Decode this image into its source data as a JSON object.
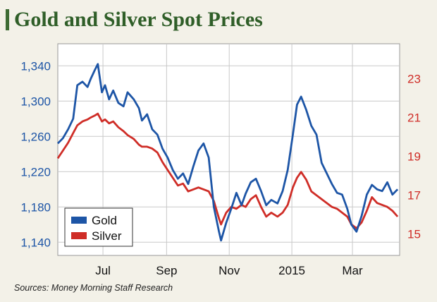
{
  "title": "Gold and Silver Spot Prices",
  "source": "Sources: Money Morning Staff Research",
  "colors": {
    "background": "#f3f1e8",
    "accent_bar": "#3d6b33",
    "title": "#2f5e28",
    "gold": "#1d55a6",
    "silver": "#cf2d27",
    "gold_axis": "#1d55a6",
    "silver_axis": "#cf2d27",
    "plot_bg": "#ffffff",
    "grid": "#c9c9c9"
  },
  "chart_data": {
    "type": "line",
    "title": "Gold and Silver Spot Prices",
    "x_ticks": [
      "Jul",
      "Sep",
      "Nov",
      "2015",
      "Mar"
    ],
    "x_range": [
      "2014-06-01",
      "2015-04-30"
    ],
    "y_left": {
      "ticks": [
        "1,140",
        "1,180",
        "1,220",
        "1,260",
        "1,300",
        "1,340"
      ],
      "ylim": [
        1125,
        1365
      ]
    },
    "y_right": {
      "ticks": [
        "15",
        "17",
        "19",
        "21",
        "23"
      ],
      "ylim": [
        13.9,
        24.8
      ]
    },
    "grid": true,
    "legend": {
      "position": "bottom-left",
      "entries": [
        "Gold",
        "Silver"
      ]
    },
    "series": [
      {
        "name": "Gold",
        "axis": "left",
        "x": [
          "2014-06-01",
          "2014-06-06",
          "2014-06-11",
          "2014-06-16",
          "2014-06-20",
          "2014-06-25",
          "2014-06-30",
          "2014-07-03",
          "2014-07-07",
          "2014-07-10",
          "2014-07-14",
          "2014-07-17",
          "2014-07-21",
          "2014-07-25",
          "2014-07-30",
          "2014-08-04",
          "2014-08-08",
          "2014-08-14",
          "2014-08-19",
          "2014-08-22",
          "2014-08-27",
          "2014-09-01",
          "2014-09-06",
          "2014-09-11",
          "2014-09-16",
          "2014-09-21",
          "2014-09-26",
          "2014-10-01",
          "2014-10-06",
          "2014-10-11",
          "2014-10-16",
          "2014-10-21",
          "2014-10-26",
          "2014-10-31",
          "2014-11-05",
          "2014-11-07",
          "2014-11-12",
          "2014-11-17",
          "2014-11-22",
          "2014-11-27",
          "2014-12-01",
          "2014-12-06",
          "2014-12-11",
          "2014-12-16",
          "2014-12-21",
          "2014-12-26",
          "2015-01-01",
          "2015-01-06",
          "2015-01-11",
          "2015-01-16",
          "2015-01-20",
          "2015-01-24",
          "2015-01-29",
          "2015-02-03",
          "2015-02-08",
          "2015-02-13",
          "2015-02-18",
          "2015-02-23",
          "2015-02-28",
          "2015-03-05",
          "2015-03-10",
          "2015-03-14",
          "2015-03-19",
          "2015-03-24",
          "2015-03-29",
          "2015-04-03",
          "2015-04-08",
          "2015-04-13",
          "2015-04-18",
          "2015-04-23",
          "2015-04-28"
        ],
        "values": [
          1252,
          1258,
          1268,
          1280,
          1318,
          1322,
          1316,
          1325,
          1335,
          1342,
          1310,
          1318,
          1302,
          1312,
          1298,
          1294,
          1310,
          1302,
          1292,
          1278,
          1285,
          1268,
          1262,
          1246,
          1236,
          1222,
          1212,
          1218,
          1206,
          1226,
          1244,
          1252,
          1236,
          1180,
          1152,
          1142,
          1162,
          1178,
          1196,
          1182,
          1195,
          1208,
          1212,
          1198,
          1182,
          1188,
          1184,
          1198,
          1222,
          1262,
          1296,
          1305,
          1290,
          1272,
          1262,
          1230,
          1218,
          1206,
          1196,
          1194,
          1178,
          1160,
          1152,
          1170,
          1194,
          1205,
          1200,
          1198,
          1208,
          1194,
          1200
        ]
      },
      {
        "name": "Silver",
        "axis": "right",
        "x": [
          "2014-06-01",
          "2014-06-06",
          "2014-06-11",
          "2014-06-16",
          "2014-06-20",
          "2014-06-25",
          "2014-06-30",
          "2014-07-03",
          "2014-07-07",
          "2014-07-10",
          "2014-07-14",
          "2014-07-17",
          "2014-07-21",
          "2014-07-25",
          "2014-07-30",
          "2014-08-04",
          "2014-08-08",
          "2014-08-14",
          "2014-08-19",
          "2014-08-22",
          "2014-08-27",
          "2014-09-01",
          "2014-09-06",
          "2014-09-11",
          "2014-09-16",
          "2014-09-21",
          "2014-09-26",
          "2014-10-01",
          "2014-10-06",
          "2014-10-11",
          "2014-10-16",
          "2014-10-21",
          "2014-10-26",
          "2014-10-31",
          "2014-11-05",
          "2014-11-07",
          "2014-11-12",
          "2014-11-17",
          "2014-11-22",
          "2014-11-27",
          "2014-12-01",
          "2014-12-06",
          "2014-12-11",
          "2014-12-16",
          "2014-12-21",
          "2014-12-26",
          "2015-01-01",
          "2015-01-06",
          "2015-01-11",
          "2015-01-16",
          "2015-01-20",
          "2015-01-24",
          "2015-01-29",
          "2015-02-03",
          "2015-02-08",
          "2015-02-13",
          "2015-02-18",
          "2015-02-23",
          "2015-02-28",
          "2015-03-05",
          "2015-03-10",
          "2015-03-14",
          "2015-03-19",
          "2015-03-24",
          "2015-03-29",
          "2015-04-03",
          "2015-04-08",
          "2015-04-13",
          "2015-04-18",
          "2015-04-23",
          "2015-04-28"
        ],
        "values": [
          18.9,
          19.3,
          19.7,
          20.2,
          20.6,
          20.8,
          20.9,
          21.0,
          21.1,
          21.2,
          20.8,
          20.9,
          20.7,
          20.8,
          20.5,
          20.3,
          20.1,
          19.9,
          19.6,
          19.5,
          19.5,
          19.4,
          19.2,
          18.7,
          18.3,
          17.9,
          17.5,
          17.6,
          17.2,
          17.3,
          17.4,
          17.3,
          17.2,
          16.7,
          15.8,
          15.5,
          16.1,
          16.4,
          16.3,
          16.5,
          16.4,
          16.8,
          17.0,
          16.4,
          15.9,
          16.1,
          15.9,
          16.1,
          16.5,
          17.4,
          17.9,
          18.2,
          17.8,
          17.2,
          17.0,
          16.8,
          16.6,
          16.4,
          16.3,
          16.1,
          15.9,
          15.5,
          15.3,
          15.6,
          16.2,
          16.9,
          16.6,
          16.5,
          16.4,
          16.2,
          15.9
        ]
      }
    ]
  }
}
